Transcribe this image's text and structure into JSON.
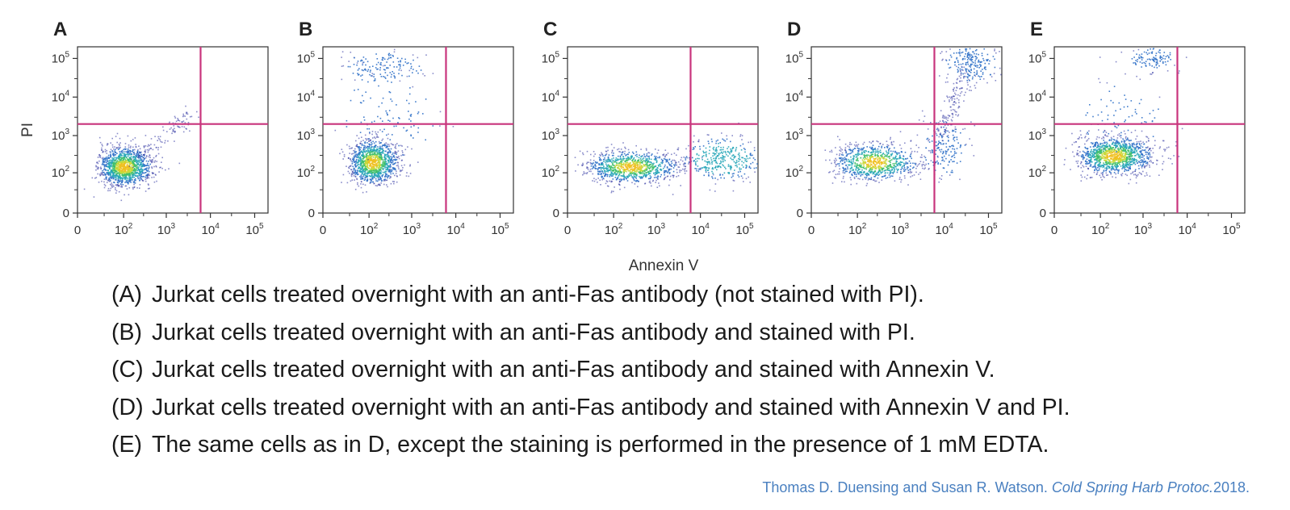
{
  "figure": {
    "x_axis_title": "Annexin V",
    "y_axis_title": "PI",
    "tick_base": "10",
    "tick_zero": "0",
    "tick_exponents": [
      "2",
      "3",
      "4",
      "5"
    ],
    "gate_color": "#c8347c",
    "density_colors": [
      "#2a2f9e",
      "#2f70c8",
      "#27a6b8",
      "#3fbf6a",
      "#c6d83a",
      "#f0c020"
    ]
  },
  "chart_data": [
    {
      "panel": "A",
      "type": "scatter",
      "scale": "biexponential",
      "xlabel": "",
      "ylabel": "PI",
      "x_ticks": [
        "0",
        "10^2",
        "10^3",
        "10^4",
        "10^5"
      ],
      "y_ticks": [
        "0",
        "10^2",
        "10^3",
        "10^4",
        "10^5"
      ],
      "xlim": [
        0,
        200000
      ],
      "ylim": [
        0,
        200000
      ],
      "gates": {
        "annexin_v": 6000,
        "pi": 2000
      },
      "populations": [
        {
          "x_center": 100,
          "y_center": 150,
          "x_spread_decades": 0.33,
          "y_spread_decades": 0.27,
          "share": 0.92
        },
        {
          "trend": "diagonal",
          "x_from": 200,
          "x_to": 4000,
          "y_from": 250,
          "y_to": 3500,
          "share": 0.08
        }
      ]
    },
    {
      "panel": "B",
      "type": "scatter",
      "scale": "biexponential",
      "xlabel": "",
      "ylabel": "",
      "x_ticks": [
        "0",
        "10^2",
        "10^3",
        "10^4",
        "10^5"
      ],
      "y_ticks": [
        "0",
        "10^2",
        "10^3",
        "10^4",
        "10^5"
      ],
      "xlim": [
        0,
        200000
      ],
      "ylim": [
        0,
        200000
      ],
      "gates": {
        "annexin_v": 6000,
        "pi": 2000
      },
      "populations": [
        {
          "x_center": 120,
          "y_center": 200,
          "x_spread_decades": 0.3,
          "y_spread_decades": 0.3,
          "share": 0.82
        },
        {
          "x_center": 200,
          "y_center": 60000,
          "x_spread_decades": 0.5,
          "y_spread_decades": 0.2,
          "share": 0.1
        },
        {
          "x_center": 300,
          "y_center": 3000,
          "x_spread_decades": 0.6,
          "y_spread_decades": 0.6,
          "share": 0.08
        }
      ]
    },
    {
      "panel": "C",
      "type": "scatter",
      "scale": "biexponential",
      "xlabel": "Annexin V",
      "ylabel": "",
      "x_ticks": [
        "0",
        "10^2",
        "10^3",
        "10^4",
        "10^5"
      ],
      "y_ticks": [
        "0",
        "10^2",
        "10^3",
        "10^4",
        "10^5"
      ],
      "xlim": [
        0,
        200000
      ],
      "ylim": [
        0,
        200000
      ],
      "gates": {
        "annexin_v": 6000,
        "pi": 2000
      },
      "populations": [
        {
          "x_center": 250,
          "y_center": 150,
          "x_spread_decades": 0.55,
          "y_spread_decades": 0.22,
          "share": 0.72
        },
        {
          "x_center": 30000,
          "y_center": 250,
          "x_spread_decades": 0.45,
          "y_spread_decades": 0.3,
          "share": 0.26
        }
      ]
    },
    {
      "panel": "D",
      "type": "scatter",
      "scale": "biexponential",
      "xlabel": "",
      "ylabel": "",
      "x_ticks": [
        "0",
        "10^2",
        "10^3",
        "10^4",
        "10^5"
      ],
      "y_ticks": [
        "0",
        "10^2",
        "10^3",
        "10^4",
        "10^5"
      ],
      "xlim": [
        0,
        200000
      ],
      "ylim": [
        0,
        200000
      ],
      "gates": {
        "annexin_v": 6000,
        "pi": 2000
      },
      "populations": [
        {
          "x_center": 250,
          "y_center": 200,
          "x_spread_decades": 0.5,
          "y_spread_decades": 0.25,
          "share": 0.62
        },
        {
          "x_center": 40000,
          "y_center": 80000,
          "x_spread_decades": 0.3,
          "y_spread_decades": 0.25,
          "share": 0.16
        },
        {
          "x_center": 10000,
          "y_center": 500,
          "x_spread_decades": 0.25,
          "y_spread_decades": 0.4,
          "share": 0.12
        },
        {
          "trend": "vertical",
          "x_from": 8000,
          "x_to": 30000,
          "y_from": 1000,
          "y_to": 50000,
          "share": 0.1
        }
      ]
    },
    {
      "panel": "E",
      "type": "scatter",
      "scale": "biexponential",
      "xlabel": "",
      "ylabel": "",
      "x_ticks": [
        "0",
        "10^2",
        "10^3",
        "10^4",
        "10^5"
      ],
      "y_ticks": [
        "0",
        "10^2",
        "10^3",
        "10^4",
        "10^5"
      ],
      "xlim": [
        0,
        200000
      ],
      "ylim": [
        0,
        200000
      ],
      "gates": {
        "annexin_v": 6000,
        "pi": 2000
      },
      "populations": [
        {
          "x_center": 200,
          "y_center": 300,
          "x_spread_decades": 0.45,
          "y_spread_decades": 0.25,
          "share": 0.86
        },
        {
          "x_center": 1500,
          "y_center": 100000,
          "x_spread_decades": 0.3,
          "y_spread_decades": 0.15,
          "share": 0.08
        },
        {
          "x_center": 300,
          "y_center": 3000,
          "x_spread_decades": 0.5,
          "y_spread_decades": 0.5,
          "share": 0.06
        }
      ]
    }
  ],
  "captions": [
    {
      "label": "(A)",
      "text": "Jurkat cells treated overnight with an anti-Fas antibody (not stained with PI)."
    },
    {
      "label": "(B)",
      "text": "Jurkat cells treated overnight with an anti-Fas antibody and stained with PI."
    },
    {
      "label": "(C)",
      "text": "Jurkat cells treated overnight with an anti-Fas antibody and stained with Annexin V."
    },
    {
      "label": "(D)",
      "text": "Jurkat cells treated overnight with an anti-Fas antibody and stained with Annexin V and PI."
    },
    {
      "label": "(E)",
      "text": "The same cells as in D, except the staining is performed in the presence of 1 mM EDTA."
    }
  ],
  "citation": {
    "authors": "Thomas D. Duensing and Susan R. Watson.",
    "journal": "Cold Spring Harb Protoc.",
    "year": "2018."
  }
}
